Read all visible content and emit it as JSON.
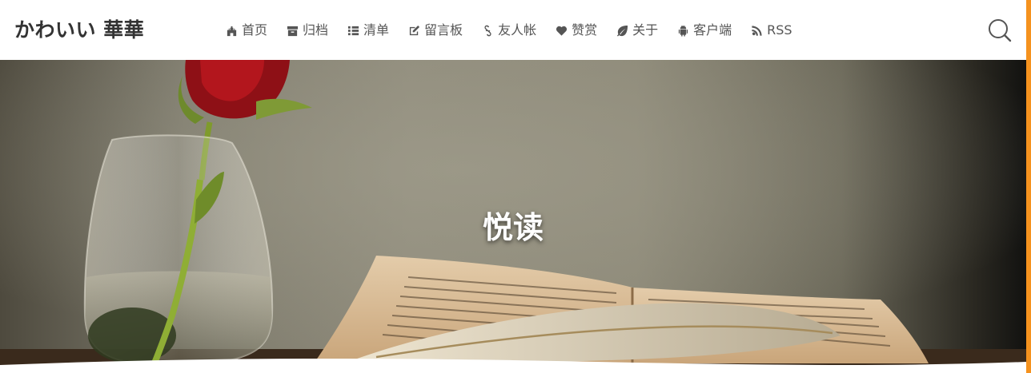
{
  "site": {
    "title": "かわいい 華華"
  },
  "nav": {
    "items": [
      {
        "icon": "home-castle-icon",
        "label": "首页"
      },
      {
        "icon": "archive-box-icon",
        "label": "归档"
      },
      {
        "icon": "list-icon",
        "label": "清单"
      },
      {
        "icon": "edit-icon",
        "label": "留言板"
      },
      {
        "icon": "link-icon",
        "label": "友人帐"
      },
      {
        "icon": "heart-icon",
        "label": "赞赏"
      },
      {
        "icon": "leaf-icon",
        "label": "关于"
      },
      {
        "icon": "android-icon",
        "label": "客户端"
      },
      {
        "icon": "rss-icon",
        "label": "RSS"
      }
    ]
  },
  "search": {
    "icon": "search-icon"
  },
  "hero": {
    "title": "悦读"
  },
  "colors": {
    "accent": "#f5921e",
    "text": "#555555",
    "title": "#333333"
  }
}
